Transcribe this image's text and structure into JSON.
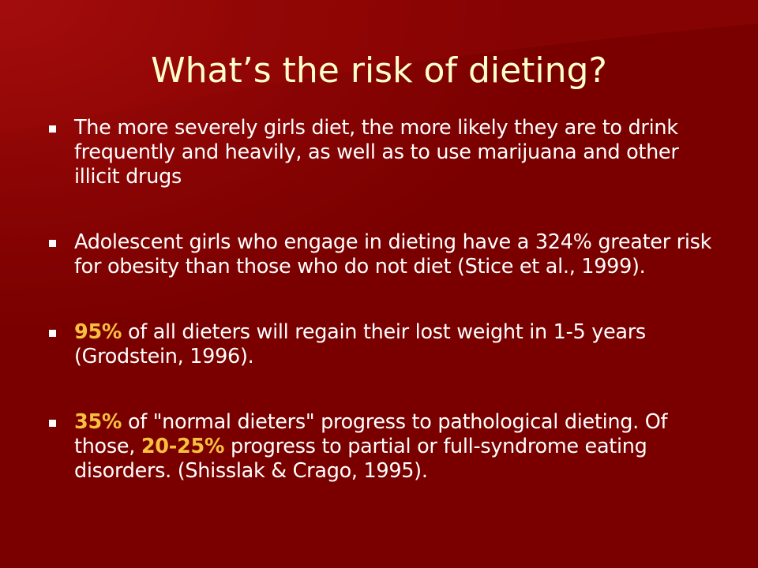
{
  "title": "What’s the risk of dieting?",
  "bullets": [
    {
      "segments": [
        {
          "text": "The more severely girls diet, the more likely they are to drink frequently and heavily, as well as to use marijuana and other illicit drugs"
        }
      ]
    },
    {
      "segments": [
        {
          "text": "Adolescent girls who engage in dieting have a 324% greater risk for obesity than those who do not diet (Stice et al., 1999)."
        }
      ]
    },
    {
      "segments": [
        {
          "text": "95%",
          "emphasis": true
        },
        {
          "text": " of all dieters will regain their lost weight in 1-5 years (Grodstein, 1996)."
        }
      ]
    },
    {
      "segments": [
        {
          "text": "35%",
          "emphasis": true
        },
        {
          "text": " of \"normal dieters\" progress to pathological dieting. Of those, "
        },
        {
          "text": "20-25%",
          "emphasis": true
        },
        {
          "text": " progress to partial or full-syndrome eating disorders. (Shisslak & Crago, 1995)."
        }
      ]
    }
  ]
}
